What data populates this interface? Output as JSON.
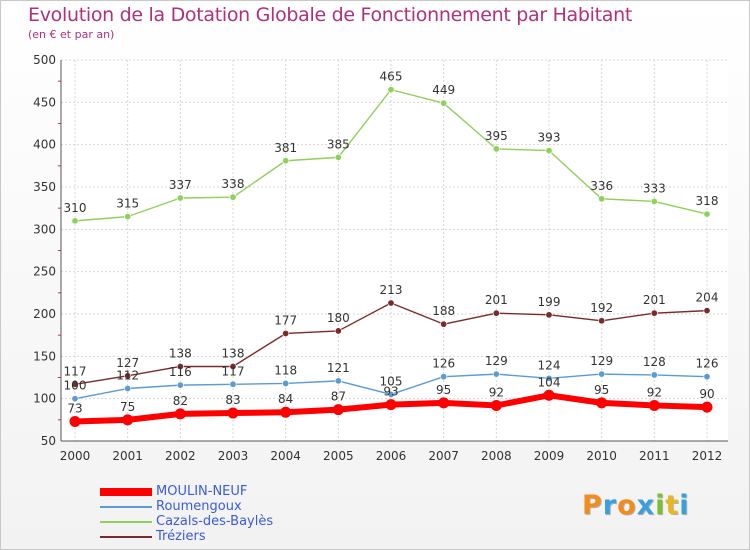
{
  "header": {
    "title": "Evolution de la Dotation Globale de Fonctionnement par Habitant",
    "subtitle": "(en € et par an)"
  },
  "logo": {
    "letters": [
      "P",
      "r",
      "o",
      "x",
      "i",
      "t",
      "i"
    ],
    "colors": [
      "#f28c1e",
      "#3aa0dc",
      "#f28c1e",
      "#3aa0dc",
      "#7bbf2e",
      "#e8b820",
      "#3aa0dc"
    ]
  },
  "chart_data": {
    "type": "line",
    "x": [
      "2000",
      "2001",
      "2002",
      "2003",
      "2004",
      "2005",
      "2006",
      "2007",
      "2008",
      "2009",
      "2010",
      "2011",
      "2012"
    ],
    "ylim": [
      50,
      500
    ],
    "yticks": [
      "50",
      "100",
      "150",
      "200",
      "250",
      "300",
      "350",
      "400",
      "450",
      "500"
    ],
    "grid": true,
    "legend_position": "bottom-left",
    "series": [
      {
        "name": "MOULIN-NEUF",
        "color": "#ff0000",
        "values": [
          73,
          75,
          82,
          83,
          84,
          87,
          93,
          95,
          92,
          104,
          95,
          92,
          90
        ],
        "labels": [
          "73",
          "75",
          "82",
          "83",
          "84",
          "87",
          "93",
          "95",
          "92",
          "104",
          "95",
          "92",
          "90"
        ]
      },
      {
        "name": "Roumengoux",
        "color": "#5a9bd3",
        "values": [
          100,
          112,
          116,
          117,
          118,
          121,
          105,
          126,
          129,
          124,
          129,
          128,
          126
        ],
        "labels": [
          "100",
          "112",
          "116",
          "117",
          "118",
          "121",
          "105",
          "126",
          "129",
          "124",
          "129",
          "128",
          "126"
        ]
      },
      {
        "name": "Cazals-des-Baylès",
        "color": "#8fd05a",
        "values": [
          310,
          315,
          337,
          338,
          381,
          385,
          465,
          449,
          395,
          393,
          336,
          333,
          318
        ],
        "labels": [
          "310",
          "315",
          "337",
          "338",
          "381",
          "385",
          "465",
          "449",
          "395",
          "393",
          "336",
          "333",
          "318"
        ]
      },
      {
        "name": "Tréziers",
        "color": "#7a2a2a",
        "values": [
          117,
          127,
          138,
          138,
          177,
          180,
          213,
          188,
          201,
          199,
          192,
          201,
          204
        ],
        "labels": [
          "117",
          "127",
          "138",
          "138",
          "177",
          "180",
          "213",
          "188",
          "201",
          "199",
          "192",
          "201",
          "204"
        ]
      }
    ]
  }
}
